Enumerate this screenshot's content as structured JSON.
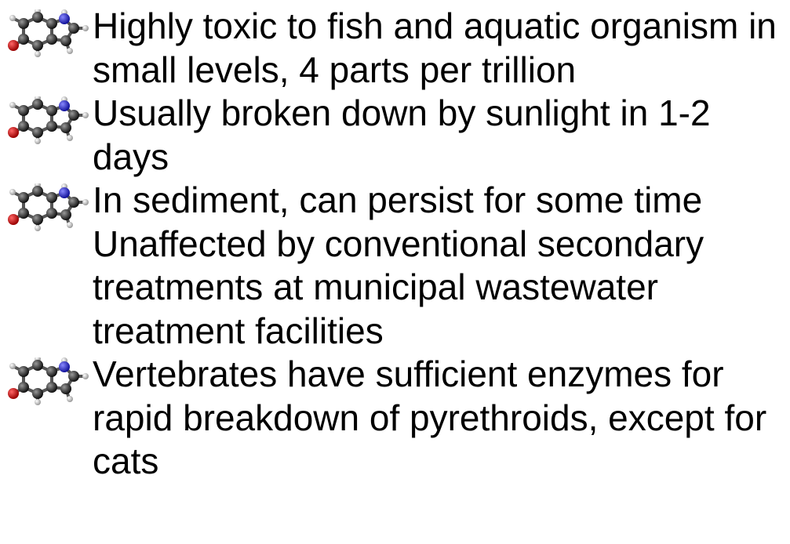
{
  "items": [
    {
      "paragraphs": [
        "Highly toxic to fish and aquatic organism in small levels, 4 parts per trillion"
      ]
    },
    {
      "paragraphs": [
        "Usually broken down by sunlight in 1-2 days"
      ]
    },
    {
      "paragraphs": [
        "In sediment, can persist for some time",
        "Unaffected by conventional secondary treatments at municipal wastewater treatment facilities"
      ]
    },
    {
      "paragraphs": [
        "Vertebrates have sufficient enzymes for rapid breakdown of pyrethroids, except for cats"
      ]
    }
  ]
}
